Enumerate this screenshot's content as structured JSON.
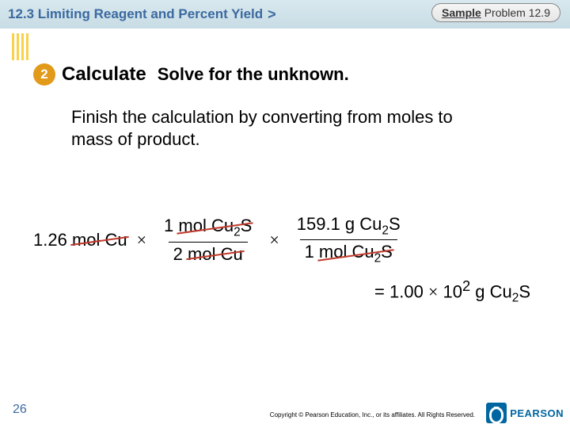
{
  "header": {
    "section_title": "12.3 Limiting Reagent and Percent Yield",
    "gt": ">",
    "sample_label_bold": "Sample",
    "sample_label_rest": " Problem 12.9"
  },
  "step": {
    "number": "2",
    "calculate": "Calculate",
    "solve": "Solve for the unknown."
  },
  "instruction": "Finish the calculation by converting from moles to mass of product.",
  "equation": {
    "term1_qty": "1.26 ",
    "term1_unit": "mol Cu",
    "times": "×",
    "frac1_num_qty": "1 ",
    "frac1_num_unit_a": "mol Cu",
    "frac1_num_unit_b": "S",
    "frac1_den_qty": "2 ",
    "frac1_den_unit": "mol Cu",
    "frac2_num": "159.1 g Cu",
    "frac2_num_sub": "2",
    "frac2_num_s": "S",
    "frac2_den_qty": "1 ",
    "frac2_den_unit_a": "mol Cu",
    "frac2_den_unit_b": "S"
  },
  "result": {
    "eq": "= 1.00 ",
    "times": "×",
    "exp_base": " 10",
    "exp": "2",
    "unit": " g Cu",
    "sub": "2",
    "s": "S"
  },
  "footer": {
    "page": "26",
    "copyright": "Copyright © Pearson Education, Inc., or its affiliates. All Rights Reserved.",
    "brand": "PEARSON"
  },
  "style": {
    "strike_color": "#c0392b",
    "header_text_color": "#3b6aa0",
    "circle_bg": "#e29a1a"
  }
}
